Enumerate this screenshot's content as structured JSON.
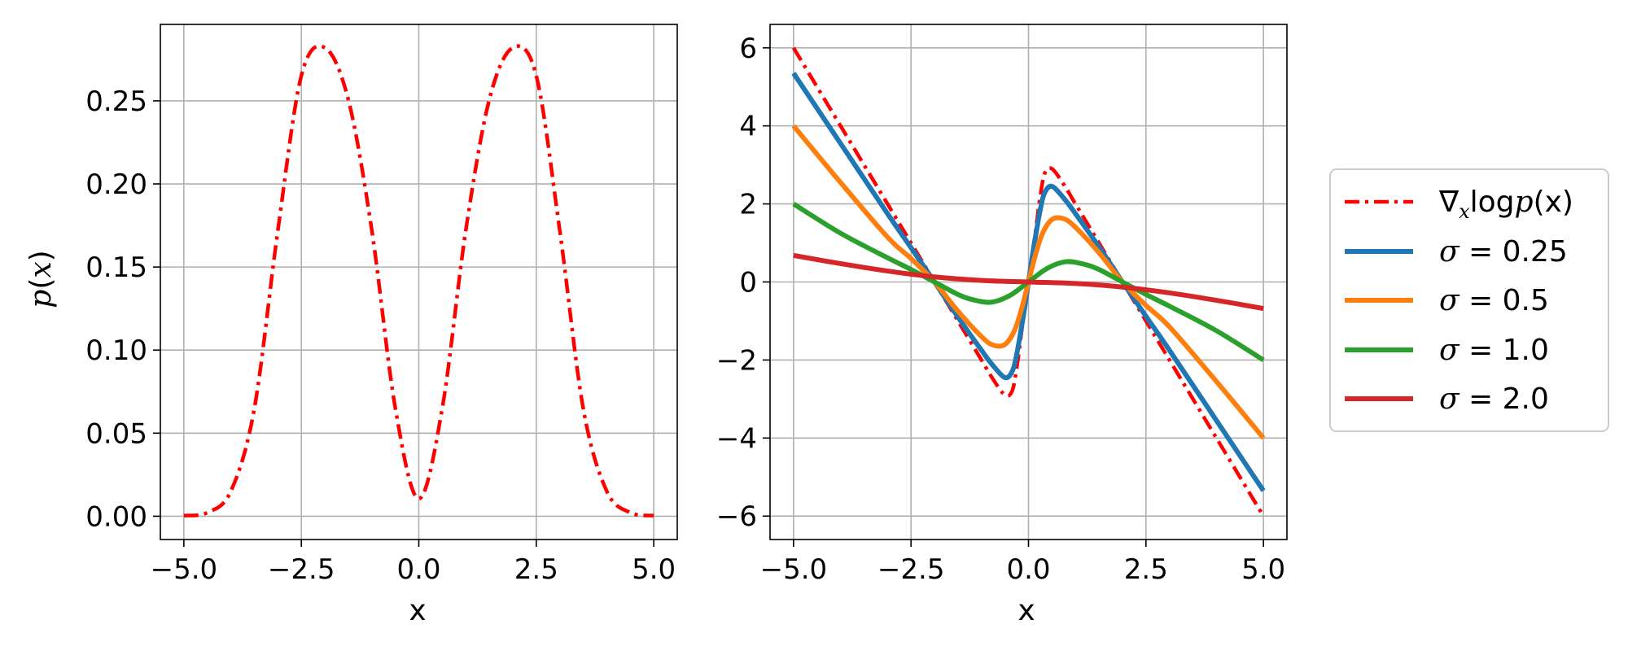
{
  "chart_data": [
    {
      "type": "line",
      "title": "",
      "xlabel": "x",
      "ylabel": "p(x)",
      "xlim": [
        -5.5,
        5.5
      ],
      "ylim": [
        -0.014,
        0.296
      ],
      "xticks": [
        -5.0,
        -2.5,
        0.0,
        2.5,
        5.0
      ],
      "xtick_labels": [
        "−5.0",
        "−2.5",
        "0.0",
        "2.5",
        "5.0"
      ],
      "yticks": [
        0.0,
        0.05,
        0.1,
        0.15,
        0.2,
        0.25
      ],
      "ytick_labels": [
        "0.00",
        "0.05",
        "0.10",
        "0.15",
        "0.20",
        "0.25"
      ],
      "grid": true,
      "series": [
        {
          "color": "#ff0000",
          "style": "dash-dot",
          "x": [
            -5.0,
            -4.5,
            -4.0,
            -3.5,
            -3.0,
            -2.5,
            -2.0,
            -1.5,
            -1.0,
            -0.5,
            0.0,
            0.5,
            1.0,
            1.5,
            2.0,
            2.5,
            3.0,
            3.5,
            4.0,
            4.5,
            5.0
          ],
          "y": [
            0.0004,
            0.0022,
            0.0151,
            0.0648,
            0.1719,
            0.2651,
            0.282,
            0.2507,
            0.1721,
            0.0651,
            0.0106,
            0.0651,
            0.1721,
            0.2507,
            0.282,
            0.2651,
            0.1719,
            0.0648,
            0.0151,
            0.0022,
            0.0004
          ]
        }
      ]
    },
    {
      "type": "line",
      "title": "",
      "xlabel": "x",
      "ylabel": "",
      "xlim": [
        -5.5,
        5.5
      ],
      "ylim": [
        -6.6,
        6.6
      ],
      "xticks": [
        -5.0,
        -2.5,
        0.0,
        2.5,
        5.0
      ],
      "xtick_labels": [
        "−5.0",
        "−2.5",
        "0.0",
        "2.5",
        "5.0"
      ],
      "yticks": [
        -6,
        -4,
        -2,
        0,
        2,
        4,
        6
      ],
      "ytick_labels": [
        "−6",
        "−4",
        "−2",
        "0",
        "2",
        "4",
        "6"
      ],
      "grid": true,
      "legend": {
        "placement": "outside-right"
      },
      "series": [
        {
          "name": "∇xlogp(x)",
          "legend_parts": {
            "nabla": "∇",
            "sub": "x",
            "log": "log",
            "p": "p",
            "args": "(x)"
          },
          "color": "#ff0000",
          "style": "dash-dot",
          "x": [
            -5.0,
            -4.0,
            -3.0,
            -2.5,
            -2.0,
            -1.5,
            -1.0,
            -0.75,
            -0.5,
            -0.35,
            -0.25,
            -0.15,
            0.0,
            0.15,
            0.25,
            0.35,
            0.5,
            0.75,
            1.0,
            1.5,
            2.0,
            2.5,
            3.0,
            4.0,
            5.0
          ],
          "y": [
            6.0,
            4.0,
            2.0,
            1.0,
            0.0,
            -1.0,
            -2.0,
            -2.5,
            -2.9,
            -2.8,
            -2.2,
            -1.3,
            0.0,
            1.3,
            2.2,
            2.8,
            2.9,
            2.5,
            2.0,
            1.0,
            0.0,
            -1.0,
            -2.0,
            -4.0,
            -6.0
          ]
        },
        {
          "name": "σ = 0.25",
          "legend_parts": {
            "sigma": "σ",
            "eq": " = 0.25"
          },
          "color": "#1f77b4",
          "style": "solid",
          "x": [
            -5.0,
            -4.0,
            -3.0,
            -2.5,
            -2.0,
            -1.5,
            -1.0,
            -0.75,
            -0.5,
            -0.35,
            -0.25,
            -0.1,
            0.0,
            0.1,
            0.25,
            0.35,
            0.5,
            0.75,
            1.0,
            1.5,
            2.0,
            2.5,
            3.0,
            4.0,
            5.0
          ],
          "y": [
            5.35,
            3.55,
            1.75,
            0.88,
            0.0,
            -0.9,
            -1.75,
            -2.15,
            -2.45,
            -2.3,
            -1.85,
            -0.8,
            0.0,
            0.8,
            1.85,
            2.3,
            2.45,
            2.15,
            1.75,
            0.9,
            0.0,
            -0.88,
            -1.75,
            -3.55,
            -5.35
          ]
        },
        {
          "name": "σ = 0.5",
          "legend_parts": {
            "sigma": "σ",
            "eq": " = 0.5"
          },
          "color": "#ff7f0e",
          "style": "solid",
          "x": [
            -5.0,
            -4.0,
            -3.0,
            -2.5,
            -2.0,
            -1.5,
            -1.0,
            -0.75,
            -0.5,
            -0.3,
            -0.15,
            0.0,
            0.15,
            0.3,
            0.5,
            0.75,
            1.0,
            1.5,
            2.0,
            2.5,
            3.0,
            4.0,
            5.0
          ],
          "y": [
            4.0,
            2.55,
            1.15,
            0.6,
            0.0,
            -0.75,
            -1.4,
            -1.62,
            -1.6,
            -1.25,
            -0.7,
            0.0,
            0.7,
            1.25,
            1.6,
            1.62,
            1.4,
            0.75,
            0.0,
            -0.6,
            -1.15,
            -2.55,
            -4.0
          ]
        },
        {
          "name": "σ = 1.0",
          "legend_parts": {
            "sigma": "σ",
            "eq": " = 1.0"
          },
          "color": "#2ca02c",
          "style": "solid",
          "x": [
            -5.0,
            -4.0,
            -3.0,
            -2.5,
            -2.0,
            -1.5,
            -1.2,
            -0.8,
            -0.4,
            0.0,
            0.4,
            0.8,
            1.2,
            1.5,
            2.0,
            2.5,
            3.0,
            4.0,
            5.0
          ],
          "y": [
            2.0,
            1.25,
            0.62,
            0.32,
            0.0,
            -0.32,
            -0.45,
            -0.52,
            -0.35,
            0.0,
            0.35,
            0.52,
            0.45,
            0.32,
            0.0,
            -0.32,
            -0.62,
            -1.25,
            -2.0
          ]
        },
        {
          "name": "σ = 2.0",
          "legend_parts": {
            "sigma": "σ",
            "eq": " = 2.0"
          },
          "color": "#d62728",
          "style": "solid",
          "x": [
            -5.0,
            -4.0,
            -3.0,
            -2.0,
            -1.0,
            0.0,
            1.0,
            2.0,
            3.0,
            4.0,
            5.0
          ],
          "y": [
            0.68,
            0.47,
            0.28,
            0.13,
            0.04,
            0.0,
            -0.04,
            -0.13,
            -0.28,
            -0.47,
            -0.68
          ]
        }
      ]
    }
  ]
}
